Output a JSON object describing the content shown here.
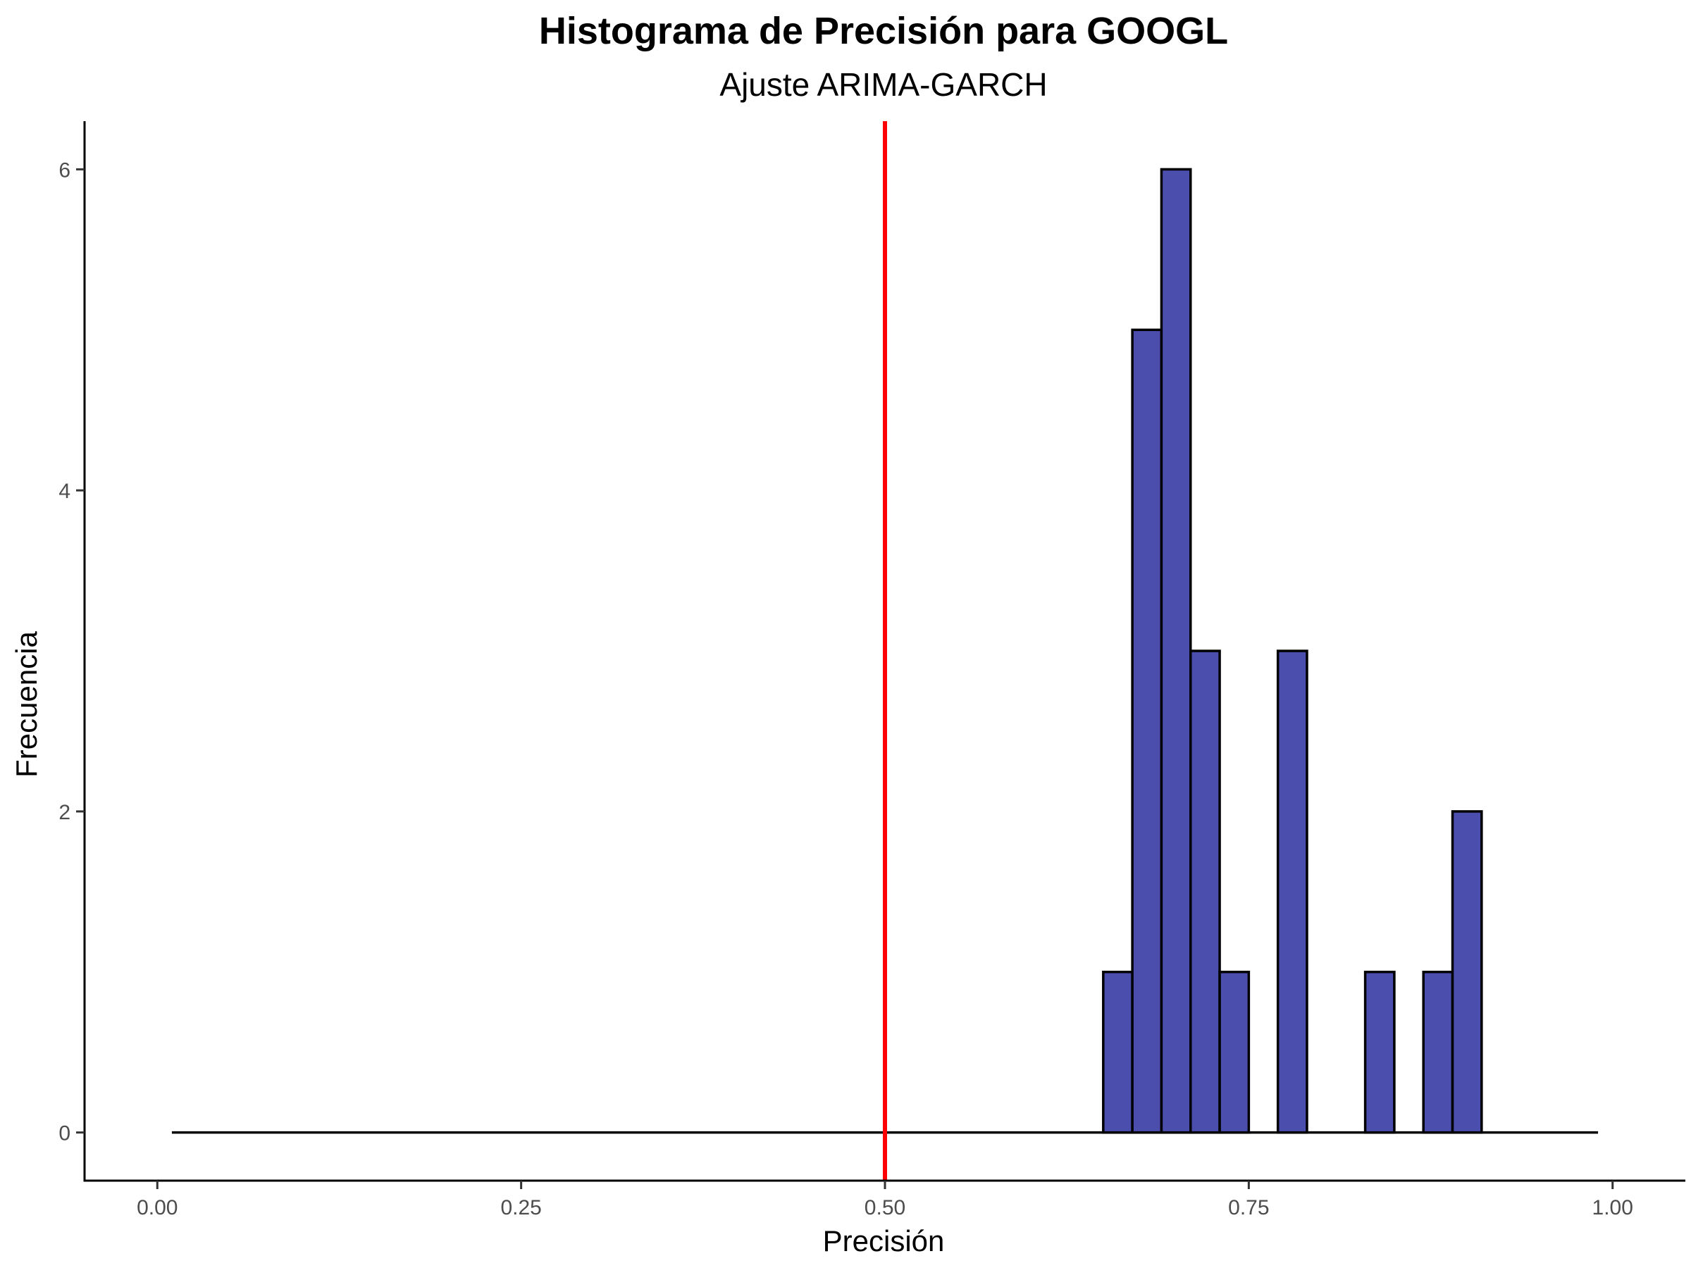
{
  "chart_data": {
    "type": "bar",
    "title": "Histograma de Precisión para GOOGL",
    "subtitle": "Ajuste ARIMA-GARCH",
    "xlabel": "Precisión",
    "ylabel": "Frecuencia",
    "xlim": [
      -0.05,
      1.05
    ],
    "ylim": [
      -0.3,
      6.3
    ],
    "x_ticks": [
      0.0,
      0.25,
      0.5,
      0.75,
      1.0
    ],
    "x_tick_labels": [
      "0.00",
      "0.25",
      "0.50",
      "0.75",
      "1.00"
    ],
    "y_ticks": [
      0,
      2,
      4,
      6
    ],
    "y_tick_labels": [
      "0",
      "2",
      "4",
      "6"
    ],
    "grid": false,
    "bin_width": 0.02,
    "range": [
      0.01,
      0.99
    ],
    "bins": [
      {
        "x0": 0.65,
        "x1": 0.67,
        "count": 1
      },
      {
        "x0": 0.67,
        "x1": 0.69,
        "count": 5
      },
      {
        "x0": 0.69,
        "x1": 0.71,
        "count": 6
      },
      {
        "x0": 0.71,
        "x1": 0.73,
        "count": 3
      },
      {
        "x0": 0.73,
        "x1": 0.75,
        "count": 1
      },
      {
        "x0": 0.77,
        "x1": 0.79,
        "count": 3
      },
      {
        "x0": 0.83,
        "x1": 0.85,
        "count": 1
      },
      {
        "x0": 0.87,
        "x1": 0.89,
        "count": 1
      },
      {
        "x0": 0.89,
        "x1": 0.91,
        "count": 2
      }
    ],
    "reference_line": {
      "x": 0.5,
      "color": "#ff0000"
    },
    "colors": {
      "bar_fill": "#4b4ead",
      "bar_outline": "#000000",
      "reference": "#ff0000"
    }
  }
}
